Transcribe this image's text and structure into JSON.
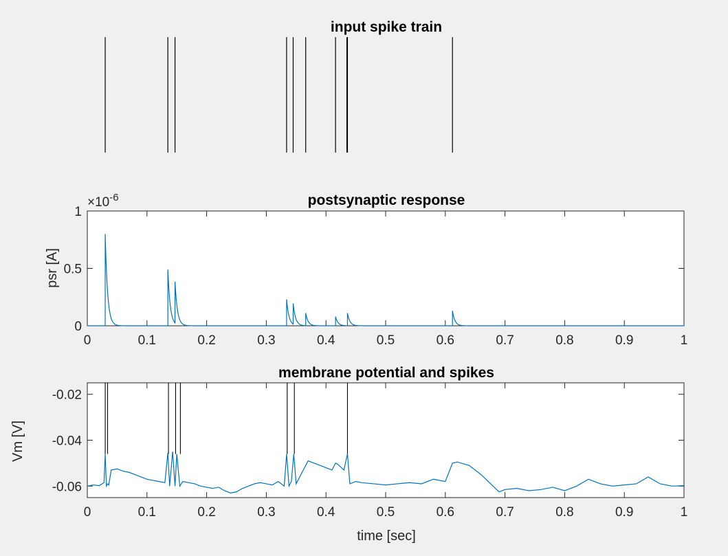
{
  "chart_data": [
    {
      "type": "raster",
      "title": "input spike train",
      "spike_times": [
        0.03,
        0.135,
        0.147,
        0.334,
        0.345,
        0.366,
        0.416,
        0.435,
        0.436,
        0.612
      ],
      "axis_visible": false,
      "xlim": [
        0,
        1
      ]
    },
    {
      "type": "line",
      "title": "postsynaptic response",
      "ylabel": "psr [A]",
      "xlabel": "",
      "y_exponent_label": "×10",
      "y_exponent": "-6",
      "xlim": [
        0,
        1
      ],
      "ylim": [
        0,
        1
      ],
      "xticks": [
        "0",
        "0.1",
        "0.2",
        "0.3",
        "0.4",
        "0.5",
        "0.6",
        "0.7",
        "0.8",
        "0.9",
        "1"
      ],
      "yticks": [
        "0",
        "0.5",
        "1"
      ],
      "color": "#0072bd",
      "pulses": [
        {
          "t": 0.03,
          "peak": 0.8
        },
        {
          "t": 0.135,
          "peak": 0.49
        },
        {
          "t": 0.147,
          "peak": 0.36
        },
        {
          "t": 0.334,
          "peak": 0.23
        },
        {
          "t": 0.345,
          "peak": 0.18
        },
        {
          "t": 0.366,
          "peak": 0.11
        },
        {
          "t": 0.416,
          "peak": 0.08
        },
        {
          "t": 0.436,
          "peak": 0.11
        },
        {
          "t": 0.612,
          "peak": 0.13
        }
      ],
      "decay_tau": 0.004
    },
    {
      "type": "line",
      "title": "membrane potential and spikes",
      "ylabel": "Vm [V]",
      "xlabel": "time [sec]",
      "xlim": [
        0,
        1
      ],
      "ylim": [
        -0.065,
        -0.015
      ],
      "xticks": [
        "0",
        "0.1",
        "0.2",
        "0.3",
        "0.4",
        "0.5",
        "0.6",
        "0.7",
        "0.8",
        "0.9",
        "1"
      ],
      "yticks": [
        "-0.06",
        "-0.04",
        "-0.02"
      ],
      "color": "#0072bd",
      "vm_trace": [
        [
          0.0,
          -0.06
        ],
        [
          0.01,
          -0.0595
        ],
        [
          0.02,
          -0.0598
        ],
        [
          0.028,
          -0.0585
        ],
        [
          0.03,
          -0.046
        ],
        [
          0.032,
          -0.06
        ],
        [
          0.034,
          -0.059
        ],
        [
          0.036,
          -0.0595
        ],
        [
          0.04,
          -0.053
        ],
        [
          0.05,
          -0.0525
        ],
        [
          0.06,
          -0.0535
        ],
        [
          0.07,
          -0.054
        ],
        [
          0.08,
          -0.055
        ],
        [
          0.09,
          -0.056
        ],
        [
          0.1,
          -0.057
        ],
        [
          0.11,
          -0.0575
        ],
        [
          0.12,
          -0.058
        ],
        [
          0.13,
          -0.0585
        ],
        [
          0.135,
          -0.0455
        ],
        [
          0.138,
          -0.06
        ],
        [
          0.143,
          -0.045
        ],
        [
          0.147,
          -0.06
        ],
        [
          0.15,
          -0.046
        ],
        [
          0.155,
          -0.06
        ],
        [
          0.16,
          -0.058
        ],
        [
          0.17,
          -0.0585
        ],
        [
          0.18,
          -0.059
        ],
        [
          0.19,
          -0.06
        ],
        [
          0.2,
          -0.0605
        ],
        [
          0.21,
          -0.061
        ],
        [
          0.22,
          -0.0605
        ],
        [
          0.23,
          -0.062
        ],
        [
          0.24,
          -0.063
        ],
        [
          0.25,
          -0.0625
        ],
        [
          0.26,
          -0.061
        ],
        [
          0.27,
          -0.06
        ],
        [
          0.28,
          -0.059
        ],
        [
          0.29,
          -0.0585
        ],
        [
          0.3,
          -0.059
        ],
        [
          0.31,
          -0.0595
        ],
        [
          0.32,
          -0.058
        ],
        [
          0.33,
          -0.06
        ],
        [
          0.334,
          -0.046
        ],
        [
          0.338,
          -0.06
        ],
        [
          0.342,
          -0.058
        ],
        [
          0.346,
          -0.046
        ],
        [
          0.35,
          -0.059
        ],
        [
          0.36,
          -0.054
        ],
        [
          0.37,
          -0.049
        ],
        [
          0.38,
          -0.05
        ],
        [
          0.39,
          -0.051
        ],
        [
          0.4,
          -0.052
        ],
        [
          0.41,
          -0.053
        ],
        [
          0.416,
          -0.05
        ],
        [
          0.42,
          -0.0505
        ],
        [
          0.43,
          -0.053
        ],
        [
          0.436,
          -0.046
        ],
        [
          0.44,
          -0.059
        ],
        [
          0.45,
          -0.058
        ],
        [
          0.46,
          -0.0585
        ],
        [
          0.48,
          -0.059
        ],
        [
          0.5,
          -0.0595
        ],
        [
          0.52,
          -0.059
        ],
        [
          0.54,
          -0.0585
        ],
        [
          0.56,
          -0.059
        ],
        [
          0.58,
          -0.057
        ],
        [
          0.6,
          -0.058
        ],
        [
          0.612,
          -0.05
        ],
        [
          0.62,
          -0.0495
        ],
        [
          0.64,
          -0.051
        ],
        [
          0.66,
          -0.055
        ],
        [
          0.68,
          -0.06
        ],
        [
          0.69,
          -0.0625
        ],
        [
          0.7,
          -0.0615
        ],
        [
          0.72,
          -0.061
        ],
        [
          0.74,
          -0.062
        ],
        [
          0.76,
          -0.0615
        ],
        [
          0.78,
          -0.0605
        ],
        [
          0.8,
          -0.062
        ],
        [
          0.82,
          -0.06
        ],
        [
          0.84,
          -0.057
        ],
        [
          0.86,
          -0.059
        ],
        [
          0.88,
          -0.06
        ],
        [
          0.9,
          -0.0595
        ],
        [
          0.92,
          -0.059
        ],
        [
          0.94,
          -0.056
        ],
        [
          0.96,
          -0.059
        ],
        [
          0.98,
          -0.06
        ],
        [
          1.0,
          -0.0598
        ]
      ],
      "output_spike_times": [
        0.03,
        0.034,
        0.136,
        0.148,
        0.156,
        0.335,
        0.347,
        0.436
      ]
    }
  ]
}
